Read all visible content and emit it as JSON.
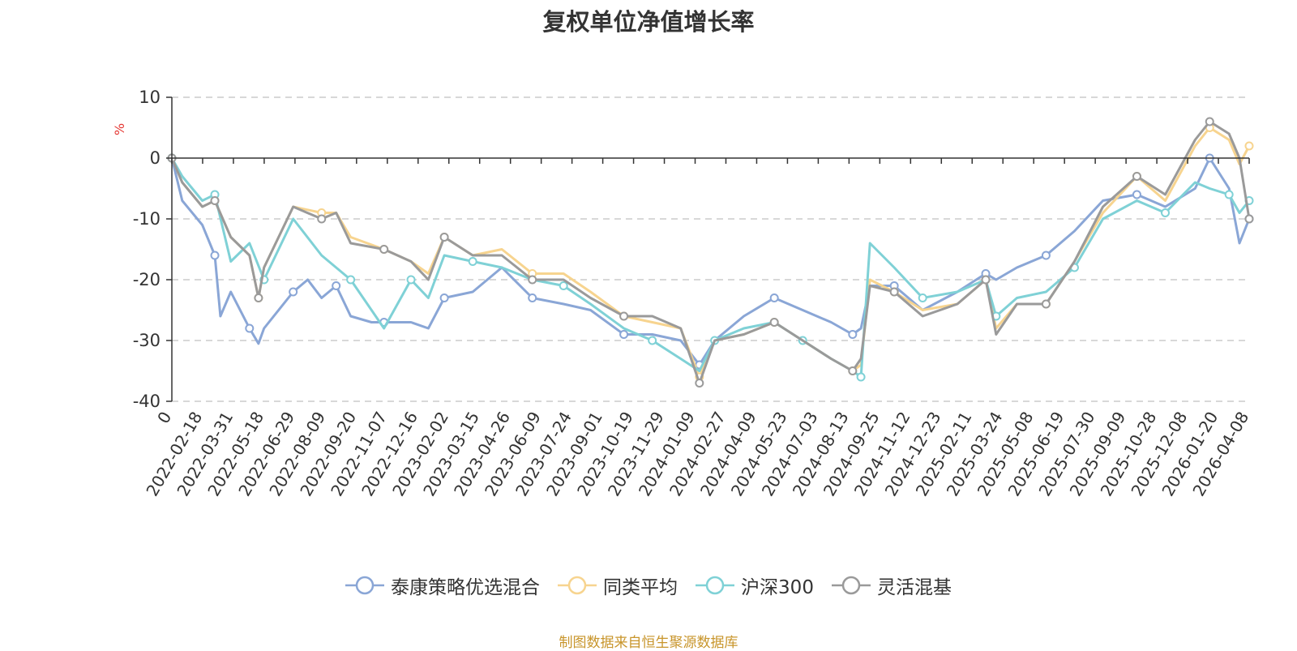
{
  "chart_data": {
    "type": "line",
    "title": "复权单位净值增长率",
    "ylabel": "%",
    "ylim": [
      -40,
      10
    ],
    "yticks": [
      "10",
      "0",
      "-10",
      "-20",
      "-30",
      "-40"
    ],
    "ytick_values": [
      10,
      0,
      -10,
      -20,
      -30,
      -40
    ],
    "grid": true,
    "legend_position": "bottom",
    "x_range": [
      "2022-01-05",
      "2026-04-08"
    ],
    "xticks": [
      "0",
      "2022-02-18",
      "2022-03-31",
      "2022-05-18",
      "2022-06-29",
      "2022-08-09",
      "2022-09-20",
      "2022-11-07",
      "2022-12-16",
      "2023-02-02",
      "2023-03-15",
      "2023-04-26",
      "2023-06-09",
      "2023-07-24",
      "2023-09-01",
      "2023-10-19",
      "2023-11-29",
      "2024-01-09",
      "2024-02-27",
      "2024-04-09",
      "2024-05-23",
      "2024-07-03",
      "2024-08-13",
      "2024-09-25",
      "2024-11-12",
      "2024-12-23",
      "2025-02-11",
      "2025-03-24",
      "2025-05-08",
      "2025-06-19",
      "2025-07-30",
      "2025-09-09",
      "2025-10-28",
      "2025-12-08",
      "2026-01-20",
      "2026-04-08"
    ],
    "series": [
      {
        "name": "泰康策略优选混合",
        "color": "#8aa6d6",
        "x": [
          "2022-01-05",
          "2022-01-20",
          "2022-02-18",
          "2022-03-08",
          "2022-03-16",
          "2022-03-31",
          "2022-04-27",
          "2022-05-10",
          "2022-05-18",
          "2022-06-29",
          "2022-07-20",
          "2022-08-09",
          "2022-08-30",
          "2022-09-20",
          "2022-10-20",
          "2022-11-07",
          "2022-12-16",
          "2023-01-10",
          "2023-02-02",
          "2023-03-15",
          "2023-04-26",
          "2023-06-09",
          "2023-07-24",
          "2023-09-01",
          "2023-10-19",
          "2023-11-29",
          "2024-01-09",
          "2024-02-05",
          "2024-02-27",
          "2024-04-09",
          "2024-05-23",
          "2024-07-03",
          "2024-08-13",
          "2024-09-13",
          "2024-09-25",
          "2024-10-08",
          "2024-11-12",
          "2024-12-23",
          "2025-02-11",
          "2025-03-24",
          "2025-04-08",
          "2025-05-08",
          "2025-06-19",
          "2025-07-30",
          "2025-09-09",
          "2025-10-28",
          "2025-12-08",
          "2026-01-20",
          "2026-02-10",
          "2026-03-10",
          "2026-03-25",
          "2026-04-08"
        ],
        "values": [
          0,
          -7,
          -11,
          -16,
          -26,
          -22,
          -28,
          -30.5,
          -28,
          -22,
          -20,
          -23,
          -21,
          -26,
          -27,
          -27,
          -27,
          -28,
          -23,
          -22,
          -18,
          -23,
          -24,
          -25,
          -29,
          -29,
          -30,
          -34,
          -30,
          -26,
          -23,
          -25,
          -27,
          -29,
          -28,
          -21,
          -21,
          -25,
          -22,
          -19,
          -20,
          -18,
          -16,
          -12,
          -7,
          -6,
          -8,
          -5,
          0,
          -5,
          -14,
          -10
        ]
      },
      {
        "name": "同类平均",
        "color": "#f7d48f",
        "x": [
          "2022-01-05",
          "2022-01-20",
          "2022-02-18",
          "2022-03-08",
          "2022-03-31",
          "2022-04-27",
          "2022-05-10",
          "2022-05-18",
          "2022-06-29",
          "2022-08-09",
          "2022-08-30",
          "2022-09-20",
          "2022-11-07",
          "2022-12-16",
          "2023-01-10",
          "2023-02-02",
          "2023-03-15",
          "2023-04-26",
          "2023-06-09",
          "2023-07-24",
          "2023-09-01",
          "2023-10-19",
          "2023-11-29",
          "2024-01-09",
          "2024-02-05",
          "2024-02-27",
          "2024-04-09",
          "2024-05-23",
          "2024-07-03",
          "2024-08-13",
          "2024-09-13",
          "2024-09-25",
          "2024-10-08",
          "2024-11-12",
          "2024-12-23",
          "2025-02-11",
          "2025-03-24",
          "2025-04-08",
          "2025-05-08",
          "2025-06-19",
          "2025-07-30",
          "2025-09-09",
          "2025-10-28",
          "2025-12-08",
          "2026-01-20",
          "2026-02-10",
          "2026-03-10",
          "2026-03-25",
          "2026-04-08"
        ],
        "values": [
          0,
          -4,
          -8,
          -7,
          -13,
          -16,
          -23,
          -18,
          -8,
          -9,
          -9,
          -13,
          -15,
          -17,
          -19,
          -13,
          -16,
          -15,
          -19,
          -19,
          -22,
          -26,
          -27,
          -28,
          -36,
          -30,
          -29,
          -27,
          -30,
          -33,
          -35,
          -34,
          -20,
          -22,
          -25,
          -24,
          -20,
          -28,
          -24,
          -24,
          -17,
          -9,
          -3,
          -7,
          2,
          5,
          3,
          -1,
          2
        ]
      },
      {
        "name": "沪深300",
        "color": "#7fd1d6",
        "x": [
          "2022-01-05",
          "2022-01-20",
          "2022-02-18",
          "2022-03-08",
          "2022-03-31",
          "2022-04-27",
          "2022-05-18",
          "2022-06-29",
          "2022-08-09",
          "2022-09-20",
          "2022-10-20",
          "2022-11-07",
          "2022-12-16",
          "2023-01-10",
          "2023-02-02",
          "2023-03-15",
          "2023-04-26",
          "2023-06-09",
          "2023-07-24",
          "2023-09-01",
          "2023-10-19",
          "2023-11-29",
          "2024-01-09",
          "2024-02-05",
          "2024-02-27",
          "2024-04-09",
          "2024-05-23",
          "2024-07-03",
          "2024-08-13",
          "2024-09-13",
          "2024-09-25",
          "2024-10-08",
          "2024-11-12",
          "2024-12-23",
          "2025-02-11",
          "2025-03-24",
          "2025-04-08",
          "2025-05-08",
          "2025-06-19",
          "2025-07-30",
          "2025-09-09",
          "2025-10-28",
          "2025-12-08",
          "2026-01-20",
          "2026-02-10",
          "2026-03-10",
          "2026-03-25",
          "2026-04-08"
        ],
        "values": [
          0,
          -3,
          -7,
          -6,
          -17,
          -14,
          -20,
          -10,
          -16,
          -20,
          -25,
          -28,
          -20,
          -23,
          -16,
          -17,
          -18,
          -20,
          -21,
          -24,
          -28,
          -30,
          -33,
          -35,
          -30,
          -28,
          -27,
          -30,
          -33,
          -35,
          -36,
          -14,
          -18,
          -23,
          -22,
          -20,
          -26,
          -23,
          -22,
          -18,
          -10,
          -7,
          -9,
          -4,
          -5,
          -6,
          -9,
          -7
        ]
      },
      {
        "name": "灵活混基",
        "color": "#9a9a9a",
        "x": [
          "2022-01-05",
          "2022-01-20",
          "2022-02-18",
          "2022-03-08",
          "2022-03-31",
          "2022-04-27",
          "2022-05-10",
          "2022-05-18",
          "2022-06-29",
          "2022-08-09",
          "2022-08-30",
          "2022-09-20",
          "2022-11-07",
          "2022-12-16",
          "2023-01-10",
          "2023-02-02",
          "2023-03-15",
          "2023-04-26",
          "2023-06-09",
          "2023-07-24",
          "2023-09-01",
          "2023-10-19",
          "2023-11-29",
          "2024-01-09",
          "2024-02-05",
          "2024-02-27",
          "2024-04-09",
          "2024-05-23",
          "2024-07-03",
          "2024-08-13",
          "2024-09-13",
          "2024-09-25",
          "2024-10-08",
          "2024-11-12",
          "2024-12-23",
          "2025-02-11",
          "2025-03-24",
          "2025-04-08",
          "2025-05-08",
          "2025-06-19",
          "2025-07-30",
          "2025-09-09",
          "2025-10-28",
          "2025-12-08",
          "2026-01-20",
          "2026-02-10",
          "2026-03-10",
          "2026-03-25",
          "2026-04-08"
        ],
        "values": [
          0,
          -4,
          -8,
          -7,
          -13,
          -16,
          -23,
          -18,
          -8,
          -10,
          -9,
          -14,
          -15,
          -17,
          -20,
          -13,
          -16,
          -16,
          -20,
          -20,
          -23,
          -26,
          -26,
          -28,
          -37,
          -30,
          -29,
          -27,
          -30,
          -33,
          -35,
          -33,
          -21,
          -22,
          -26,
          -24,
          -20,
          -29,
          -24,
          -24,
          -17,
          -8,
          -3,
          -6,
          3,
          6,
          4,
          0,
          -10
        ]
      }
    ]
  },
  "legend": {
    "items": [
      "泰康策略优选混合",
      "同类平均",
      "沪深300",
      "灵活混基"
    ]
  },
  "source_text": "制图数据来自恒生聚源数据库"
}
